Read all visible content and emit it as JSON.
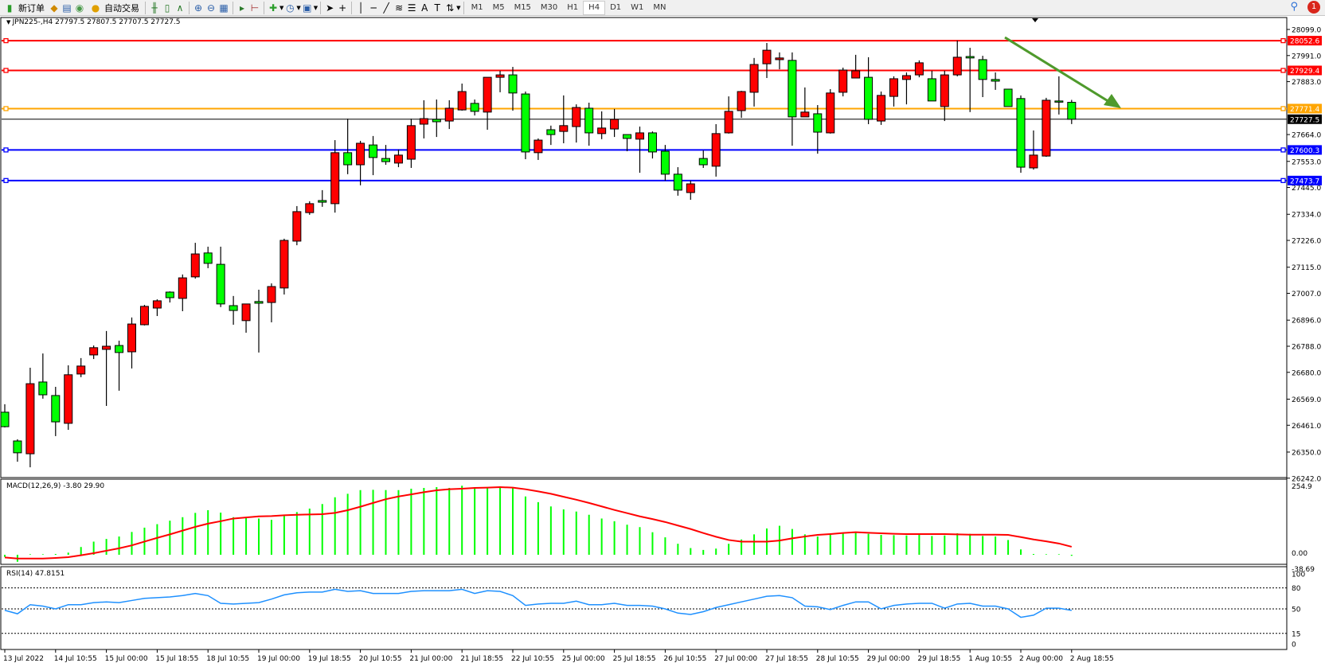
{
  "toolbar": {
    "new_order": "新订单",
    "auto_trading": "自动交易",
    "timeframes": [
      "M1",
      "M5",
      "M15",
      "M30",
      "H1",
      "H4",
      "D1",
      "W1",
      "MN"
    ],
    "active_timeframe": "H4",
    "notification_count": "1",
    "icons": [
      "new-order-icon",
      "metaeditor-icon",
      "navigator-icon",
      "signal-icon",
      "auto-trading-icon",
      "bar-chart-icon",
      "candlestick-icon",
      "line-chart-icon",
      "zoom-in-icon",
      "zoom-out-icon",
      "tile-windows-icon",
      "auto-scroll-icon",
      "chart-shift-icon",
      "indicators-icon",
      "periods-icon",
      "templates-icon",
      "cursor-icon",
      "crosshair-icon",
      "vertical-line-icon",
      "horizontal-line-icon",
      "trendline-icon",
      "fibonacci-icon",
      "fibonacci-channel-icon",
      "text-icon",
      "text-label-icon",
      "arrows-icon",
      "search-icon",
      "chat-icon"
    ],
    "text_tool_label": "A"
  },
  "chart": {
    "symbol_line": "JPN225-,H4  27797.5 27807.5 27707.5 27727.5",
    "colors": {
      "bull": "#ff0000",
      "bear": "#00ff00",
      "grid": "#000000",
      "macd_hist": "#00ff00",
      "macd_signal": "#ff0000",
      "rsi": "#1e90ff",
      "trend_arrow": "#4f9a2c"
    },
    "price_ticks": [
      "28099.0",
      "27991.0",
      "27883.0",
      "27664.0",
      "27553.0",
      "27445.0",
      "27334.0",
      "27226.0",
      "27115.0",
      "27007.0",
      "26896.0",
      "26788.0",
      "26680.0",
      "26569.0",
      "26461.0",
      "26350.0",
      "26242.0"
    ],
    "levels": [
      {
        "price": 28052.6,
        "label": "28052.6",
        "color": "#ff0000"
      },
      {
        "price": 27929.4,
        "label": "27929.4",
        "color": "#ff0000"
      },
      {
        "price": 27771.4,
        "label": "27771.4",
        "color": "#ffa500"
      },
      {
        "price": 27727.5,
        "label": "27727.5",
        "color": "#000000"
      },
      {
        "price": 27600.3,
        "label": "27600.3",
        "color": "#0000ff"
      },
      {
        "price": 27473.7,
        "label": "27473.7",
        "color": "#0000ff"
      }
    ],
    "time_labels": [
      "13 Jul 2022",
      "14 Jul 10:55",
      "15 Jul 00:00",
      "15 Jul 18:55",
      "18 Jul 10:55",
      "19 Jul 00:00",
      "19 Jul 18:55",
      "20 Jul 10:55",
      "21 Jul 00:00",
      "21 Jul 18:55",
      "22 Jul 10:55",
      "25 Jul 00:00",
      "25 Jul 18:55",
      "26 Jul 10:55",
      "27 Jul 00:00",
      "27 Jul 18:55",
      "28 Jul 10:55",
      "29 Jul 00:00",
      "29 Jul 18:55",
      "1 Aug 10:55",
      "2 Aug 00:00",
      "2 Aug 18:55"
    ],
    "macd_title": "MACD(12,26,9) -3.80 29.90",
    "macd_ticks": [
      "254.9",
      "0.00",
      "-38.69"
    ],
    "rsi_title": "RSI(14) 47.8151",
    "rsi_ticks": [
      "100",
      "80",
      "50",
      "15",
      "0"
    ]
  },
  "chart_data": {
    "type": "candlestick",
    "symbol": "JPN225-",
    "timeframe": "H4",
    "ohlc": [
      [
        26515,
        26548,
        26452,
        26455
      ],
      [
        26396,
        26403,
        26310,
        26347
      ],
      [
        26343,
        26699,
        26287,
        26633
      ],
      [
        26640,
        26758,
        26571,
        26587
      ],
      [
        26584,
        26620,
        26416,
        26475
      ],
      [
        26469,
        26709,
        26442,
        26670
      ],
      [
        26673,
        26739,
        26660,
        26706
      ],
      [
        26752,
        26791,
        26735,
        26782
      ],
      [
        26775,
        26851,
        26541,
        26788
      ],
      [
        26791,
        26811,
        26604,
        26762
      ],
      [
        26765,
        26907,
        26696,
        26880
      ],
      [
        26877,
        26959,
        26874,
        26953
      ],
      [
        26946,
        26982,
        26913,
        26976
      ],
      [
        27012,
        27015,
        26969,
        26989
      ],
      [
        26986,
        27085,
        26933,
        27071
      ],
      [
        27075,
        27216,
        27068,
        27170
      ],
      [
        27174,
        27200,
        27111,
        27131
      ],
      [
        27127,
        27200,
        26950,
        26963
      ],
      [
        26956,
        26996,
        26877,
        26936
      ],
      [
        26894,
        26963,
        26844,
        26963
      ],
      [
        26973,
        27022,
        26762,
        26966
      ],
      [
        26969,
        27048,
        26887,
        27035
      ],
      [
        27029,
        27233,
        27002,
        27226
      ],
      [
        27223,
        27368,
        27206,
        27345
      ],
      [
        27341,
        27388,
        27332,
        27378
      ],
      [
        27391,
        27434,
        27365,
        27384
      ],
      [
        27378,
        27641,
        27341,
        27589
      ],
      [
        27589,
        27730,
        27500,
        27539
      ],
      [
        27539,
        27638,
        27454,
        27628
      ],
      [
        27621,
        27658,
        27496,
        27569
      ],
      [
        27565,
        27621,
        27539,
        27552
      ],
      [
        27546,
        27602,
        27529,
        27579
      ],
      [
        27562,
        27730,
        27526,
        27701
      ],
      [
        27707,
        27806,
        27648,
        27730
      ],
      [
        27727,
        27809,
        27654,
        27717
      ],
      [
        27720,
        27806,
        27687,
        27773
      ],
      [
        27766,
        27875,
        27763,
        27842
      ],
      [
        27793,
        27809,
        27743,
        27760
      ],
      [
        27757,
        27901,
        27684,
        27901
      ],
      [
        27901,
        27928,
        27839,
        27911
      ],
      [
        27911,
        27944,
        27763,
        27836
      ],
      [
        27832,
        27842,
        27562,
        27592
      ],
      [
        27589,
        27648,
        27559,
        27641
      ],
      [
        27684,
        27701,
        27621,
        27664
      ],
      [
        27677,
        27826,
        27628,
        27701
      ],
      [
        27697,
        27789,
        27631,
        27776
      ],
      [
        27773,
        27796,
        27618,
        27671
      ],
      [
        27668,
        27760,
        27645,
        27691
      ],
      [
        27687,
        27770,
        27654,
        27727
      ],
      [
        27664,
        27664,
        27595,
        27648
      ],
      [
        27645,
        27697,
        27506,
        27671
      ],
      [
        27671,
        27677,
        27565,
        27592
      ],
      [
        27595,
        27621,
        27473,
        27500
      ],
      [
        27500,
        27529,
        27411,
        27434
      ],
      [
        27424,
        27473,
        27394,
        27460
      ],
      [
        27565,
        27598,
        27526,
        27539
      ],
      [
        27533,
        27707,
        27490,
        27668
      ],
      [
        27671,
        27822,
        27668,
        27760
      ],
      [
        27763,
        27845,
        27733,
        27842
      ],
      [
        27839,
        27981,
        27780,
        27954
      ],
      [
        27957,
        28043,
        27898,
        28013
      ],
      [
        27974,
        28004,
        27934,
        27981
      ],
      [
        27971,
        28004,
        27618,
        27737
      ],
      [
        27737,
        27859,
        27737,
        27757
      ],
      [
        27750,
        27786,
        27585,
        27674
      ],
      [
        27671,
        27852,
        27668,
        27836
      ],
      [
        27839,
        27941,
        27822,
        27931
      ],
      [
        27898,
        27994,
        27898,
        27928
      ],
      [
        27901,
        27984,
        27707,
        27727
      ],
      [
        27720,
        27842,
        27704,
        27826
      ],
      [
        27822,
        27905,
        27780,
        27895
      ],
      [
        27892,
        27921,
        27789,
        27908
      ],
      [
        27911,
        27971,
        27901,
        27961
      ],
      [
        27895,
        27928,
        27803,
        27803
      ],
      [
        27780,
        27928,
        27720,
        27911
      ],
      [
        27911,
        28053,
        27905,
        27984
      ],
      [
        27987,
        28023,
        27757,
        27981
      ],
      [
        27974,
        27990,
        27819,
        27892
      ],
      [
        27892,
        27921,
        27849,
        27885
      ],
      [
        27852,
        27852,
        27780,
        27780
      ],
      [
        27813,
        27826,
        27506,
        27529
      ],
      [
        27526,
        27681,
        27519,
        27579
      ],
      [
        27575,
        27816,
        27572,
        27806
      ],
      [
        27803,
        27905,
        27747,
        27803
      ],
      [
        27797.5,
        27807.5,
        27707.5,
        27727.5
      ]
    ],
    "macd_hist": [
      -8,
      -26,
      2,
      2,
      3,
      8,
      29,
      49,
      59,
      68,
      85,
      101,
      114,
      127,
      140,
      156,
      166,
      157,
      140,
      137,
      135,
      130,
      145,
      159,
      172,
      189,
      214,
      227,
      241,
      242,
      241,
      241,
      246,
      249,
      252,
      249,
      257,
      252,
      252,
      252,
      250,
      217,
      196,
      180,
      169,
      161,
      149,
      135,
      125,
      112,
      103,
      84,
      65,
      41,
      25,
      18,
      23,
      41,
      57,
      76,
      98,
      108,
      96,
      76,
      68,
      74,
      81,
      86,
      78,
      74,
      73,
      72,
      74,
      70,
      72,
      80,
      78,
      70,
      68,
      55,
      20,
      3,
      2,
      2,
      -3.8
    ],
    "macd_signal": [
      -10,
      -14,
      -14,
      -14,
      -12,
      -9,
      -2,
      6,
      15,
      24,
      35,
      49,
      63,
      76,
      90,
      104,
      116,
      125,
      135,
      139,
      143,
      144,
      147,
      149,
      150,
      151,
      156,
      166,
      179,
      193,
      207,
      217,
      225,
      233,
      240,
      244,
      246,
      249,
      250,
      252,
      250,
      244,
      236,
      227,
      216,
      205,
      193,
      180,
      167,
      155,
      143,
      133,
      122,
      109,
      96,
      81,
      67,
      55,
      49,
      49,
      49,
      53,
      61,
      68,
      74,
      77,
      81,
      84,
      82,
      80,
      78,
      77,
      77,
      77,
      77,
      76,
      75,
      75,
      75,
      74,
      66,
      57,
      50,
      42,
      29.9
    ],
    "rsi": [
      48,
      43,
      56,
      54,
      50,
      56,
      56,
      59,
      60,
      59,
      62,
      65,
      66,
      67,
      69,
      72,
      69,
      58,
      57,
      58,
      59,
      64,
      70,
      73,
      74,
      74,
      78,
      75,
      76,
      72,
      72,
      72,
      75,
      76,
      76,
      76,
      78,
      72,
      76,
      75,
      69,
      55,
      57,
      58,
      58,
      61,
      56,
      56,
      58,
      55,
      55,
      54,
      50,
      44,
      42,
      46,
      52,
      56,
      60,
      64,
      68,
      69,
      66,
      54,
      53,
      49,
      55,
      60,
      60,
      50,
      55,
      57,
      58,
      58,
      51,
      57,
      58,
      54,
      54,
      50,
      38,
      41,
      51,
      51,
      47.8151
    ],
    "rsi_levels": [
      80,
      50,
      15
    ],
    "macd_range": [
      -38.69,
      254.9
    ],
    "price_range": [
      26242,
      28099
    ]
  }
}
